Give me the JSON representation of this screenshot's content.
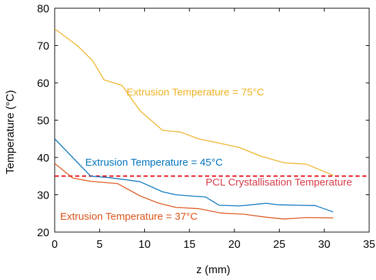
{
  "chart_data": {
    "type": "line",
    "xlabel": "z (mm)",
    "ylabel": "Temperature (°C)",
    "xlim": [
      0,
      35
    ],
    "ylim": [
      20,
      80
    ],
    "xticks": [
      0,
      5,
      10,
      15,
      20,
      25,
      30,
      35
    ],
    "yticks": [
      20,
      30,
      40,
      50,
      60,
      70,
      80
    ],
    "grid": false,
    "series": [
      {
        "name": "Extrusion Temperature = 75°C",
        "color": "#EDB120",
        "x": [
          0,
          2.5,
          4.2,
          5.5,
          7.5,
          9.5,
          12,
          14,
          16,
          18,
          20.5,
          23,
          25.5,
          28,
          31
        ],
        "y": [
          74.5,
          70,
          66,
          60.8,
          59.3,
          52.5,
          47.3,
          46.8,
          45,
          44,
          42.7,
          40.3,
          38.6,
          38.2,
          35.2
        ]
      },
      {
        "name": "Extrusion Temperature = 45°C",
        "color": "#0072BD",
        "x": [
          0,
          2,
          4,
          6,
          8,
          9.5,
          12,
          13.5,
          15,
          16.8,
          18.3,
          20.5,
          23.5,
          25,
          27,
          29,
          31
        ],
        "y": [
          45,
          40,
          35,
          34.6,
          34,
          33.5,
          30.8,
          30,
          29.7,
          29.4,
          27.2,
          27,
          27.7,
          27.3,
          27.2,
          27.1,
          25.4
        ]
      },
      {
        "name": "Extrusion Temperature = 37°C",
        "color": "#D95319",
        "x": [
          0,
          2,
          4,
          7,
          9.5,
          11.5,
          13.5,
          16,
          18.5,
          21,
          23.5,
          25.5,
          28,
          31
        ],
        "y": [
          38.4,
          34.5,
          33.6,
          33,
          29.7,
          27.8,
          26.6,
          26.3,
          25.1,
          24.8,
          24,
          23.5,
          23.9,
          23.8
        ]
      }
    ],
    "reference_line": {
      "label": "PCL Crystallisation Temperature",
      "y": 35,
      "color": "#E8101A",
      "label_color": "#D63A4A"
    },
    "annotations": [
      {
        "series": 0,
        "text": "Extrusion Temperature = 75°C",
        "x": 8,
        "y": 56.6,
        "color": "#EDB120"
      },
      {
        "series": 1,
        "text": "Extrusion Temperature = 45°C",
        "x": 3.4,
        "y": 37.8,
        "color": "#0072BD"
      },
      {
        "series": 2,
        "text": "Extrusion Temperature = 37°C",
        "x": 0.6,
        "y": 23.3,
        "color": "#D95319"
      },
      {
        "series": -1,
        "text": "PCL Crystallisation Temperature",
        "x": 16.8,
        "y": 32.5,
        "color": "#D63A4A"
      }
    ]
  }
}
